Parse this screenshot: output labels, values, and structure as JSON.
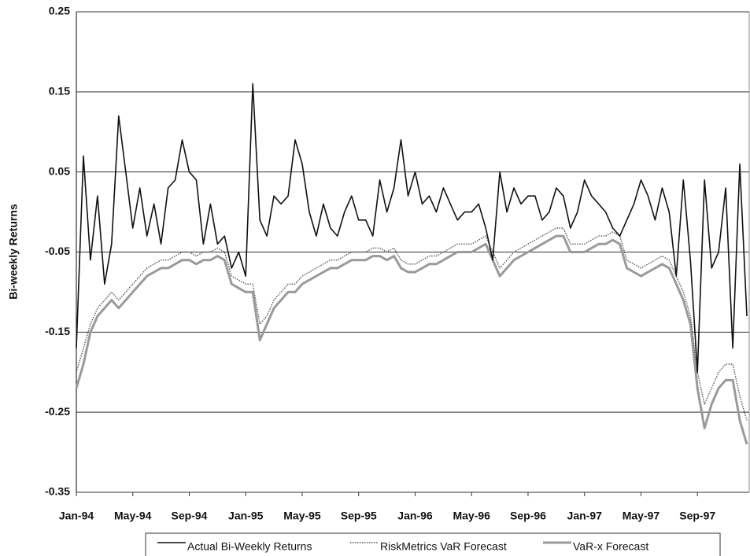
{
  "chart_data": {
    "type": "line",
    "ylabel": "Bi-weekly Returns",
    "categories": [
      "Jan-94",
      null,
      null,
      null,
      null,
      null,
      null,
      null,
      "May-94",
      null,
      null,
      null,
      null,
      null,
      null,
      null,
      "Sep-94",
      null,
      null,
      null,
      null,
      null,
      null,
      null,
      "Jan-95",
      null,
      null,
      null,
      null,
      null,
      null,
      null,
      "May-95",
      null,
      null,
      null,
      null,
      null,
      null,
      null,
      "Sep-95",
      null,
      null,
      null,
      null,
      null,
      null,
      null,
      "Jan-96",
      null,
      null,
      null,
      null,
      null,
      null,
      null,
      "May-96",
      null,
      null,
      null,
      null,
      null,
      null,
      null,
      "Sep-96",
      null,
      null,
      null,
      null,
      null,
      null,
      null,
      "Jan-97",
      null,
      null,
      null,
      null,
      null,
      null,
      null,
      "May-97",
      null,
      null,
      null,
      null,
      null,
      null,
      null,
      "Sep-97",
      null,
      null,
      null,
      null,
      null,
      null,
      null
    ],
    "series": [
      {
        "name": "Actual Bi-Weekly Returns",
        "color": "#111111",
        "style": "solid",
        "values": [
          -0.17,
          0.07,
          -0.06,
          0.02,
          -0.09,
          -0.04,
          0.12,
          0.05,
          -0.02,
          0.03,
          -0.03,
          0.01,
          -0.04,
          0.03,
          0.04,
          0.09,
          0.05,
          0.04,
          -0.04,
          0.01,
          -0.04,
          -0.03,
          -0.07,
          -0.05,
          -0.08,
          0.16,
          -0.01,
          -0.03,
          0.02,
          0.01,
          0.02,
          0.09,
          0.06,
          0.0,
          -0.03,
          0.01,
          -0.02,
          -0.03,
          0.0,
          0.02,
          -0.01,
          -0.01,
          -0.03,
          0.04,
          0.0,
          0.03,
          0.09,
          0.02,
          0.05,
          0.01,
          0.02,
          0.0,
          0.03,
          0.01,
          -0.01,
          0.0,
          0.0,
          0.01,
          -0.02,
          -0.06,
          0.05,
          0.0,
          0.03,
          0.01,
          0.02,
          0.02,
          -0.01,
          0.0,
          0.03,
          0.02,
          -0.02,
          0.0,
          0.04,
          0.02,
          0.01,
          0.0,
          -0.02,
          -0.03,
          -0.01,
          0.01,
          0.04,
          0.02,
          -0.01,
          0.03,
          0.0,
          -0.08,
          0.04,
          -0.06,
          -0.2,
          0.04,
          -0.07,
          -0.05,
          0.03,
          -0.17,
          0.06,
          -0.13
        ]
      },
      {
        "name": "RiskMetrics VaR Forecast",
        "color": "#555555",
        "style": "dotted",
        "values": [
          -0.2,
          -0.17,
          -0.14,
          -0.12,
          -0.11,
          -0.1,
          -0.11,
          -0.1,
          -0.09,
          -0.08,
          -0.07,
          -0.065,
          -0.06,
          -0.06,
          -0.055,
          -0.05,
          -0.05,
          -0.055,
          -0.05,
          -0.05,
          -0.045,
          -0.05,
          -0.08,
          -0.085,
          -0.09,
          -0.09,
          -0.14,
          -0.13,
          -0.11,
          -0.1,
          -0.09,
          -0.09,
          -0.08,
          -0.075,
          -0.07,
          -0.065,
          -0.06,
          -0.06,
          -0.055,
          -0.05,
          -0.05,
          -0.05,
          -0.045,
          -0.045,
          -0.05,
          -0.045,
          -0.06,
          -0.065,
          -0.065,
          -0.06,
          -0.055,
          -0.055,
          -0.05,
          -0.045,
          -0.04,
          -0.04,
          -0.04,
          -0.035,
          -0.03,
          -0.05,
          -0.07,
          -0.06,
          -0.05,
          -0.045,
          -0.04,
          -0.035,
          -0.03,
          -0.025,
          -0.02,
          -0.02,
          -0.04,
          -0.04,
          -0.04,
          -0.035,
          -0.03,
          -0.03,
          -0.025,
          -0.03,
          -0.06,
          -0.065,
          -0.07,
          -0.065,
          -0.06,
          -0.055,
          -0.06,
          -0.08,
          -0.1,
          -0.13,
          -0.2,
          -0.24,
          -0.22,
          -0.2,
          -0.19,
          -0.19,
          -0.23,
          -0.26
        ]
      },
      {
        "name": "VaR-x Forecast",
        "color": "#9a9a9a",
        "style": "solid",
        "values": [
          -0.22,
          -0.19,
          -0.15,
          -0.13,
          -0.12,
          -0.11,
          -0.12,
          -0.11,
          -0.1,
          -0.09,
          -0.08,
          -0.075,
          -0.07,
          -0.07,
          -0.065,
          -0.06,
          -0.06,
          -0.065,
          -0.06,
          -0.06,
          -0.055,
          -0.06,
          -0.09,
          -0.095,
          -0.1,
          -0.1,
          -0.16,
          -0.14,
          -0.12,
          -0.11,
          -0.1,
          -0.1,
          -0.09,
          -0.085,
          -0.08,
          -0.075,
          -0.07,
          -0.07,
          -0.065,
          -0.06,
          -0.06,
          -0.06,
          -0.055,
          -0.055,
          -0.06,
          -0.055,
          -0.07,
          -0.075,
          -0.075,
          -0.07,
          -0.065,
          -0.065,
          -0.06,
          -0.055,
          -0.05,
          -0.05,
          -0.05,
          -0.045,
          -0.04,
          -0.06,
          -0.08,
          -0.07,
          -0.06,
          -0.055,
          -0.05,
          -0.045,
          -0.04,
          -0.035,
          -0.03,
          -0.03,
          -0.05,
          -0.05,
          -0.05,
          -0.045,
          -0.04,
          -0.04,
          -0.035,
          -0.04,
          -0.07,
          -0.075,
          -0.08,
          -0.075,
          -0.07,
          -0.065,
          -0.07,
          -0.09,
          -0.11,
          -0.14,
          -0.22,
          -0.27,
          -0.24,
          -0.22,
          -0.21,
          -0.21,
          -0.26,
          -0.29
        ]
      }
    ],
    "ylim": [
      -0.35,
      0.25
    ],
    "yticks": [
      0.25,
      0.15,
      0.05,
      -0.05,
      -0.15,
      -0.25,
      -0.35
    ],
    "grid": true,
    "legend": "bottom"
  }
}
